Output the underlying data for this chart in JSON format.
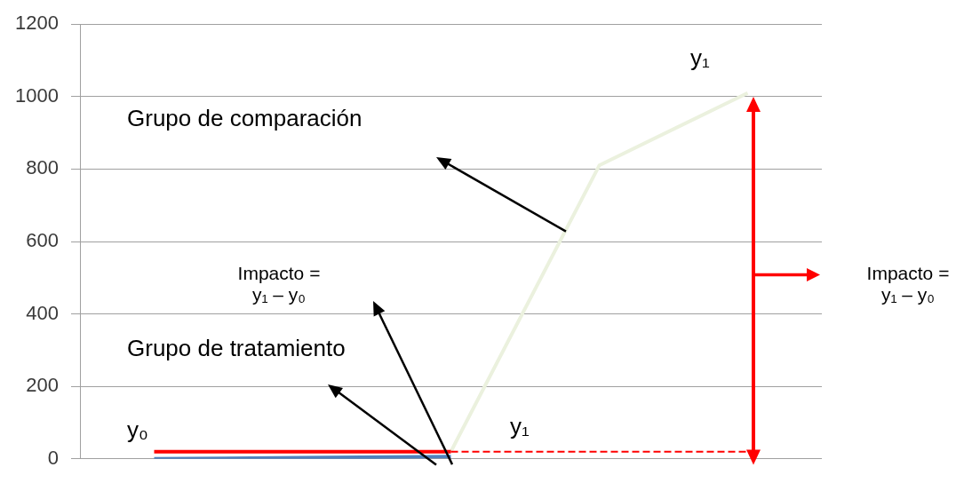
{
  "chart_data": {
    "type": "line",
    "categories": [
      null,
      null,
      null,
      null,
      null
    ],
    "series": [
      {
        "color": "#4f81bd",
        "values": [
          0,
          3,
          6,
          null,
          null
        ]
      },
      {
        "color": "#ff0000",
        "values": [
          20,
          20,
          20,
          null,
          null
        ]
      },
      {
        "color": "#ff0000",
        "values": [
          null,
          null,
          20,
          20,
          20
        ],
        "line_style": "dashed"
      },
      {
        "color": "#ebf1de",
        "values": [
          null,
          null,
          20,
          810,
          1010
        ]
      }
    ],
    "ylim": [
      0,
      1200
    ],
    "yticks": [
      0,
      200,
      400,
      600,
      800,
      1000,
      1200
    ],
    "grid": "y",
    "marker": "none",
    "tick_labels": "y",
    "annotations": [
      "y₁",
      "Grupo de comparación",
      "Impacto = y₁ – y₀",
      "Impacto = y₁ – y₀",
      "Grupo de tratamiento",
      "y₀",
      "y₁"
    ]
  }
}
